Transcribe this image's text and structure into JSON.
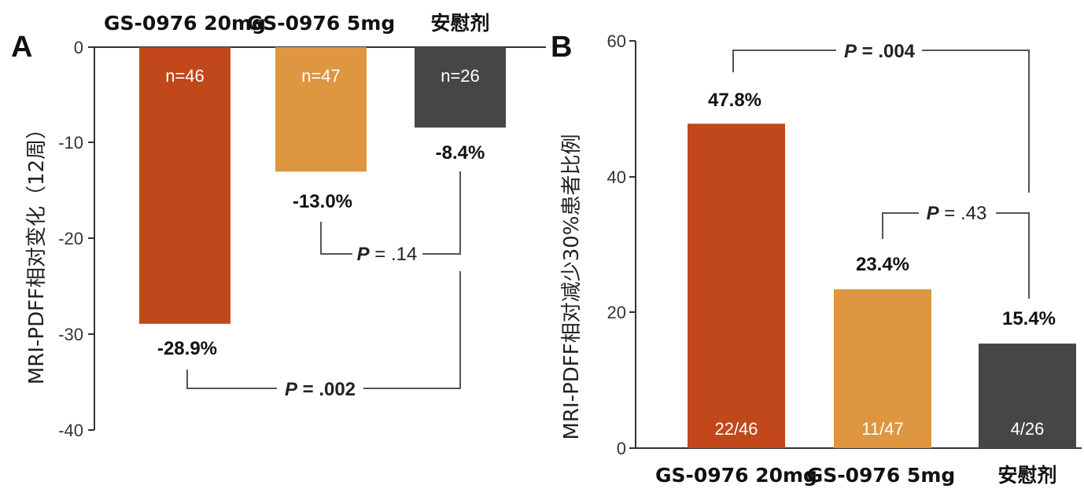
{
  "chart_data": [
    {
      "panel": "A",
      "type": "bar",
      "categories": [
        "GS-0976 20mg",
        "GS-0976 5mg",
        "安慰剂"
      ],
      "values": [
        -28.9,
        -13.0,
        -8.4
      ],
      "value_labels": [
        "-28.9%",
        "-13.0%",
        "-8.4%"
      ],
      "n_labels": [
        "n=46",
        "n=47",
        "n=26"
      ],
      "colors": [
        "#c0481a",
        "#de9640",
        "#464646"
      ],
      "ylabel": "MRI-PDFF相对变化（12周）",
      "ylim": [
        -40,
        0
      ],
      "yticks": [
        0,
        -10,
        -20,
        -30,
        -40
      ],
      "categories_position": "top",
      "p_values": [
        {
          "label": "P",
          "value": " = .14",
          "between": [
            1,
            2
          ]
        },
        {
          "label": "P",
          "value": " = .002",
          "between": [
            0,
            2
          ]
        }
      ]
    },
    {
      "panel": "B",
      "type": "bar",
      "categories": [
        "GS-0976 20mg",
        "GS-0976 5mg",
        "安慰剂"
      ],
      "values": [
        47.8,
        23.4,
        15.4
      ],
      "value_labels": [
        "47.8%",
        "23.4%",
        "15.4%"
      ],
      "n_labels": [
        "22/46",
        "11/47",
        "4/26"
      ],
      "colors": [
        "#c0481a",
        "#de9640",
        "#464646"
      ],
      "ylabel": "MRI-PDFF相对减少30%患者比例",
      "ylim": [
        0,
        60
      ],
      "yticks": [
        0,
        20,
        40,
        60
      ],
      "categories_position": "bottom",
      "p_values": [
        {
          "label": "P",
          "value": " = .004",
          "between": [
            0,
            2
          ]
        },
        {
          "label": "P",
          "value": " = .43",
          "between": [
            1,
            2
          ]
        }
      ]
    }
  ]
}
